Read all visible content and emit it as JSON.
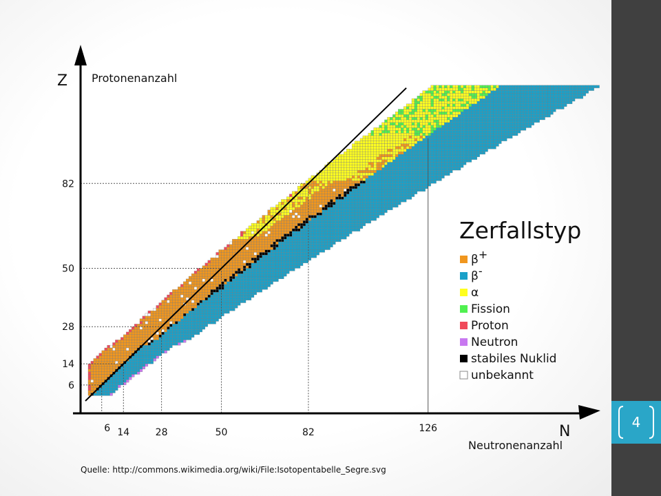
{
  "slide": {
    "page_number": "4",
    "source_note": "Quelle: http://commons.wikimedia.org/wiki/File:Isotopentabelle_Segre.svg"
  },
  "colors": {
    "beta_plus": "#f0961e",
    "beta_minus": "#1aa0c8",
    "alpha": "#ffff1e",
    "fission": "#50f050",
    "proton": "#f04a5a",
    "neutron": "#c878f0",
    "stable": "#000000",
    "unknown": "#ffffff",
    "accent": "#2aa6c8",
    "sidebar": "#404040"
  },
  "chart_data": {
    "type": "heatmap",
    "title": "",
    "x_axis": {
      "symbol": "N",
      "label": "Neutronenanzahl",
      "ticks": [
        6,
        14,
        28,
        50,
        82,
        126
      ]
    },
    "y_axis": {
      "symbol": "Z",
      "label": "Protonenanzahl",
      "ticks": [
        6,
        14,
        28,
        50,
        82
      ]
    },
    "xlim": [
      0,
      177
    ],
    "ylim": [
      0,
      120
    ],
    "diagonal": {
      "description": "N = Z",
      "from": [
        0,
        0
      ],
      "to": [
        118,
        118
      ]
    },
    "grid": "dotted reference lines at magic numbers",
    "legend": {
      "title": "Zerfallstyp",
      "placement": "right",
      "entries": [
        {
          "key": "beta_plus",
          "label_main": "β",
          "label_sup": "+"
        },
        {
          "key": "beta_minus",
          "label_main": "β",
          "label_sup": "-"
        },
        {
          "key": "alpha",
          "label_main": "α",
          "label_sup": ""
        },
        {
          "key": "fission",
          "label_main": "Fission",
          "label_sup": ""
        },
        {
          "key": "proton",
          "label_main": "Proton",
          "label_sup": ""
        },
        {
          "key": "neutron",
          "label_main": "Neutron",
          "label_sup": ""
        },
        {
          "key": "stable",
          "label_main": "stabiles Nuklid",
          "label_sup": ""
        },
        {
          "key": "unknown",
          "label_main": "unbekannt",
          "label_sup": ""
        }
      ]
    }
  }
}
